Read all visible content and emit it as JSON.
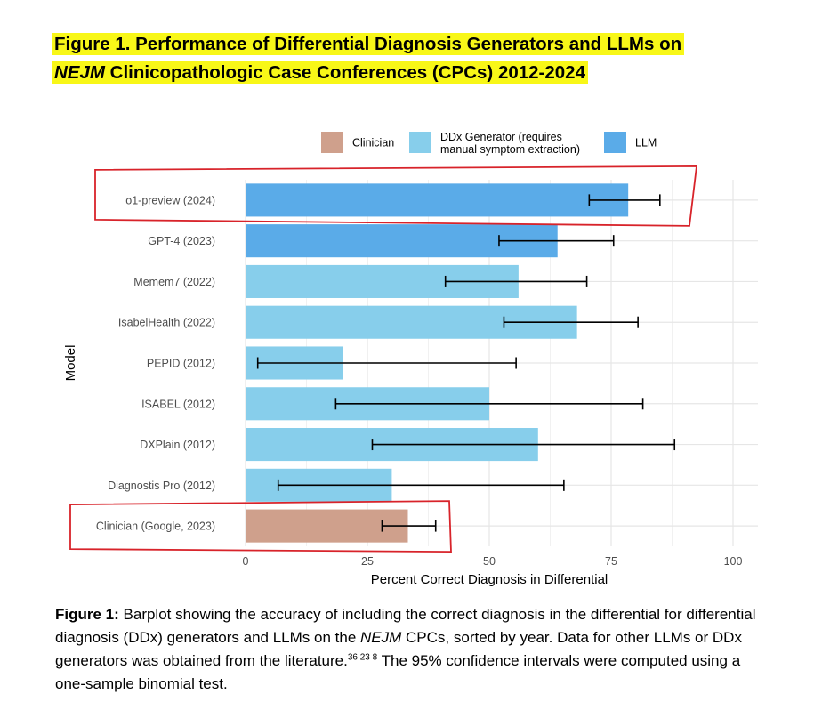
{
  "title": {
    "line1": "Figure 1. Performance of Differential Diagnosis Generators and LLMs on",
    "line2_italic": "NEJM",
    "line2_rest": " Clinicopathologic Case Conferences (CPCs) 2012-2024"
  },
  "colors": {
    "clinician": "#cfa08c",
    "ddx": "#87ceeb",
    "llm": "#5aabe8",
    "highlight_box": "#d8232a",
    "title_highlight": "#f8f718"
  },
  "chart_data": {
    "type": "bar",
    "orientation": "horizontal",
    "xlabel": "Percent Correct Diagnosis in Differential",
    "ylabel": "Model",
    "xlim": [
      0,
      100
    ],
    "xticks": [
      0,
      25,
      50,
      75,
      100
    ],
    "grid": true,
    "legend_position": "top",
    "legend": [
      {
        "key": "clinician",
        "label": "Clinician"
      },
      {
        "key": "ddx",
        "label_line1": "DDx Generator (requires",
        "label_line2": "manual symptom extraction)"
      },
      {
        "key": "llm",
        "label": "LLM"
      }
    ],
    "categories": [
      {
        "label": "o1-preview (2024)",
        "value": 78.5,
        "ci": [
          70.5,
          85
        ],
        "group": "llm",
        "highlighted": true
      },
      {
        "label": "GPT-4 (2023)",
        "value": 64,
        "ci": [
          52,
          75.5
        ],
        "group": "llm",
        "highlighted": false
      },
      {
        "label": "Memem7 (2022)",
        "value": 56,
        "ci": [
          41,
          70
        ],
        "group": "ddx",
        "highlighted": false
      },
      {
        "label": "IsabelHealth (2022)",
        "value": 68,
        "ci": [
          53,
          80.5
        ],
        "group": "ddx",
        "highlighted": false
      },
      {
        "label": "PEPID (2012)",
        "value": 20,
        "ci": [
          2.5,
          55.5
        ],
        "group": "ddx",
        "highlighted": false
      },
      {
        "label": "ISABEL (2012)",
        "value": 50,
        "ci": [
          18.5,
          81.5
        ],
        "group": "ddx",
        "highlighted": false
      },
      {
        "label": "DXPlain (2012)",
        "value": 60,
        "ci": [
          26,
          88
        ],
        "group": "ddx",
        "highlighted": false
      },
      {
        "label": "Diagnostis Pro (2012)",
        "value": 30,
        "ci": [
          6.7,
          65.3
        ],
        "group": "ddx",
        "highlighted": false
      },
      {
        "label": "Clinician (Google, 2023)",
        "value": 33.3,
        "ci": [
          28,
          39
        ],
        "group": "clinician",
        "highlighted": true
      }
    ]
  },
  "caption": {
    "label": "Figure 1:",
    "text1": " Barplot showing the accuracy of including the correct diagnosis in the differential for differential diagnosis (DDx) generators and LLMs on the ",
    "italic": "NEJM",
    "text2": " CPCs, sorted by year. Data for other LLMs or DDx generators was obtained from the literature.",
    "refs": "36 23 8",
    "text3": " The 95% confidence intervals were computed using a one-sample binomial test."
  }
}
